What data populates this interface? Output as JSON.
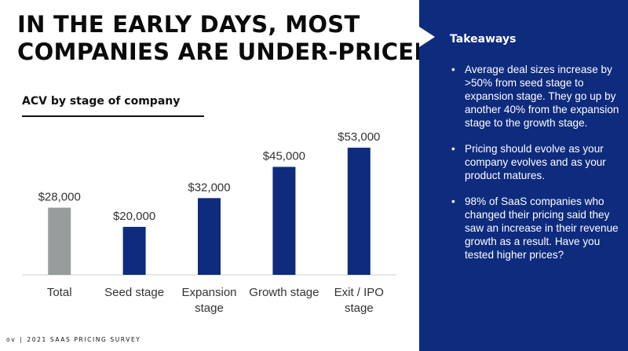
{
  "slide": {
    "title_lines": [
      "IN THE EARLY DAYS, MOST",
      "COMPANIES ARE UNDER-PRICED"
    ],
    "subtitle": "ACV by stage of company",
    "footer": {
      "logo": "ov",
      "separator": "|",
      "text": "2021 SAAS PRICING SURVEY"
    }
  },
  "panel": {
    "heading": "Takeaways",
    "bullet": "•",
    "items": [
      "Average deal sizes increase by >50% from seed stage to expansion stage. They go up by another 40% from the expansion stage to the growth stage.",
      "Pricing should evolve as your company evolves and as your product matures.",
      "98% of SaaS companies who changed their pricing said they saw an increase in their revenue growth as a result. Have you tested higher prices?"
    ]
  },
  "colors": {
    "total_bar": "#979c9c",
    "stage_bar": "#0e2b7e",
    "panel_bg": "#0e2b7e"
  },
  "chart_data": {
    "type": "bar",
    "title": "ACV by stage of company",
    "categories": [
      [
        "Total"
      ],
      [
        "Seed stage"
      ],
      [
        "Expansion",
        "stage"
      ],
      [
        "Growth stage"
      ],
      [
        "Exit / IPO",
        "stage"
      ]
    ],
    "values": [
      28000,
      20000,
      32000,
      45000,
      53000
    ],
    "data_labels": [
      "$28,000",
      "$20,000",
      "$32,000",
      "$45,000",
      "$53,000"
    ],
    "bar_colors": [
      "#979c9c",
      "#0e2b7e",
      "#0e2b7e",
      "#0e2b7e",
      "#0e2b7e"
    ],
    "ylim": [
      0,
      55000
    ],
    "grid": false,
    "legend": false
  }
}
